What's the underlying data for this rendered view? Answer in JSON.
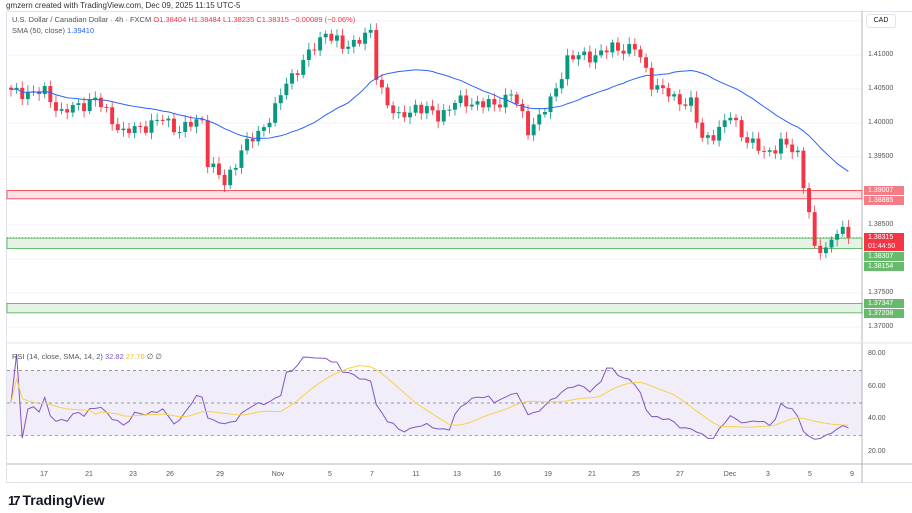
{
  "credit": "gmzern created with TradingView.com, Dec 09, 2025 11:15 UTC-5",
  "header": {
    "symbol": "U.S. Dollar / Canadian Dollar · 4h · FXCM",
    "open": "O1.38404",
    "high": "H1.38484",
    "low": "L1.38235",
    "close": "C1.38315",
    "change": "−0.00089 (−0.06%)"
  },
  "sma": {
    "label": "SMA (50, close)",
    "value": "1.39410"
  },
  "rsi": {
    "label": "RSI (14, close, SMA, 14, 2)",
    "value": "32.82",
    "sma_value": "27.76",
    "extra1": "∅",
    "extra2": "∅",
    "levels": [
      "80.00",
      "60.00",
      "40.00",
      "20.00"
    ]
  },
  "currency": "CAD",
  "price_ticks": [
    "1.41000",
    "1.40500",
    "1.40000",
    "1.39500",
    "1.38500",
    "1.37500",
    "1.37000"
  ],
  "zones": [
    {
      "top": "1.39007",
      "bottom": "1.38885",
      "color": "#f23645"
    },
    {
      "top": "1.38307",
      "bottom": "1.38154",
      "color": "#4caf50"
    },
    {
      "top": "1.37347",
      "bottom": "1.37208",
      "color": "#4caf50"
    }
  ],
  "last_price": {
    "value": "1.38315",
    "countdown": "01:44:50"
  },
  "x_ticks": [
    "17",
    "21",
    "23",
    "26",
    "29",
    "Nov",
    "5",
    "7",
    "11",
    "13",
    "16",
    "19",
    "21",
    "25",
    "27",
    "Dec",
    "3",
    "5",
    "9"
  ],
  "colors": {
    "up": "#089981",
    "down": "#f23645",
    "sma": "#2962ff",
    "rsi": "#7e57c2",
    "rsi_sma": "#f7d14a"
  },
  "logo": "TradingView",
  "chart_data": {
    "type": "candlestick",
    "ylim": [
      1.368,
      1.4175
    ],
    "price_path": [
      [
        0,
        1.4045
      ],
      [
        6,
        1.4045
      ],
      [
        9,
        1.4015
      ],
      [
        15,
        1.4035
      ],
      [
        20,
        1.3985
      ],
      [
        27,
        1.4005
      ],
      [
        30,
        1.399
      ],
      [
        34,
        1.4005
      ],
      [
        35,
        1.3945
      ],
      [
        38,
        1.391
      ],
      [
        41,
        1.396
      ],
      [
        44,
        1.3985
      ],
      [
        47,
        1.402
      ],
      [
        49,
        1.406
      ],
      [
        53,
        1.41
      ],
      [
        56,
        1.4135
      ],
      [
        59,
        1.411
      ],
      [
        62,
        1.4125
      ],
      [
        64,
        1.413
      ],
      [
        65,
        1.407
      ],
      [
        67,
        1.403
      ],
      [
        69,
        1.4005
      ],
      [
        72,
        1.4025
      ],
      [
        76,
        1.401
      ],
      [
        79,
        1.403
      ],
      [
        83,
        1.403
      ],
      [
        86,
        1.4025
      ],
      [
        89,
        1.4045
      ],
      [
        92,
        1.399
      ],
      [
        96,
        1.403
      ],
      [
        99,
        1.4095
      ],
      [
        104,
        1.41
      ],
      [
        107,
        1.411
      ],
      [
        111,
        1.411
      ],
      [
        114,
        1.406
      ],
      [
        118,
        1.4035
      ],
      [
        121,
        1.403
      ],
      [
        123,
        1.3975
      ],
      [
        126,
        1.399
      ],
      [
        128,
        1.401
      ],
      [
        131,
        1.3975
      ],
      [
        134,
        1.3955
      ],
      [
        137,
        1.397
      ],
      [
        140,
        1.3955
      ],
      [
        142,
        1.387
      ],
      [
        143,
        1.381
      ],
      [
        145,
        1.3815
      ],
      [
        147,
        1.3845
      ],
      [
        149,
        1.38315
      ]
    ]
  }
}
